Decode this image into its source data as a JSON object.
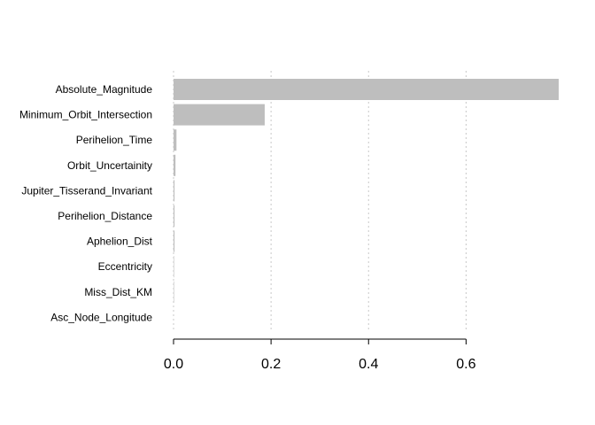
{
  "chart_data": {
    "type": "bar",
    "orientation": "horizontal",
    "categories": [
      "Absolute_Magnitude",
      "Minimum_Orbit_Intersection",
      "Perihelion_Time",
      "Orbit_Uncertainity",
      "Jupiter_Tisserand_Invariant",
      "Perihelion_Distance",
      "Aphelion_Dist",
      "Eccentricity",
      "Miss_Dist_KM",
      "Asc_Node_Longitude"
    ],
    "values": [
      0.79,
      0.187,
      0.006,
      0.004,
      0.002,
      0.002,
      0.002,
      0.001,
      0.001,
      0.0
    ],
    "xlim": [
      0,
      0.79
    ],
    "xticks": [
      0.0,
      0.2,
      0.4,
      0.6
    ],
    "xtick_labels": [
      "0.0",
      "0.2",
      "0.4",
      "0.6"
    ],
    "bar_color": "#bebebe",
    "grid": "vertical dotted",
    "title": "",
    "xlabel": "",
    "ylabel": ""
  }
}
